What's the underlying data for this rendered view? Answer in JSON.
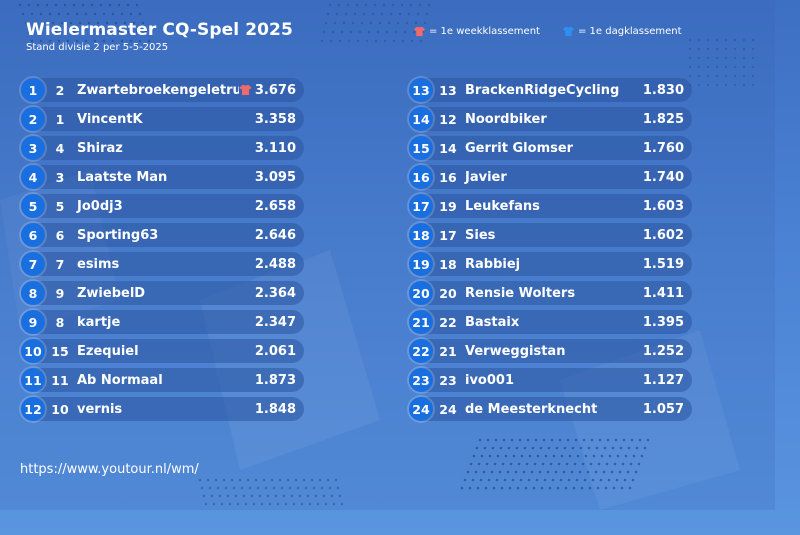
{
  "title": "Wielermaster CQ-Spel 2025",
  "subtitle": "Stand divisie 2 per 5-5-2025",
  "legend": [
    {
      "icon": "shirt-icon",
      "color": "#f06a6a",
      "label": "= 1e weekklassement"
    },
    {
      "icon": "shirt-icon",
      "color": "#2f8ff0",
      "label": "= 1e dagklassement"
    }
  ],
  "colors": {
    "rank_circle": "#1a6fe0",
    "week_shirt": "#f06a6a",
    "day_shirt": "#2f8ff0"
  },
  "standings_left": [
    {
      "rank": "1",
      "prev": "2",
      "name": "Zwartebroekengeletrui",
      "score": "3.676",
      "week_shirt": true
    },
    {
      "rank": "2",
      "prev": "1",
      "name": "VincentK",
      "score": "3.358"
    },
    {
      "rank": "3",
      "prev": "4",
      "name": "Shiraz",
      "score": "3.110"
    },
    {
      "rank": "4",
      "prev": "3",
      "name": "Laatste Man",
      "score": "3.095"
    },
    {
      "rank": "5",
      "prev": "5",
      "name": "Jo0dj3",
      "score": "2.658"
    },
    {
      "rank": "6",
      "prev": "6",
      "name": "Sporting63",
      "score": "2.646"
    },
    {
      "rank": "7",
      "prev": "7",
      "name": "esims",
      "score": "2.488"
    },
    {
      "rank": "8",
      "prev": "9",
      "name": "ZwiebelD",
      "score": "2.364"
    },
    {
      "rank": "9",
      "prev": "8",
      "name": "kartje",
      "score": "2.347"
    },
    {
      "rank": "10",
      "prev": "15",
      "name": "Ezequiel",
      "score": "2.061"
    },
    {
      "rank": "11",
      "prev": "11",
      "name": "Ab Normaal",
      "score": "1.873"
    },
    {
      "rank": "12",
      "prev": "10",
      "name": "vernis",
      "score": "1.848"
    }
  ],
  "standings_right": [
    {
      "rank": "13",
      "prev": "13",
      "name": "BrackenRidgeCycling",
      "score": "1.830"
    },
    {
      "rank": "14",
      "prev": "12",
      "name": "Noordbiker",
      "score": "1.825"
    },
    {
      "rank": "15",
      "prev": "14",
      "name": "Gerrit Glomser",
      "score": "1.760"
    },
    {
      "rank": "16",
      "prev": "16",
      "name": "Javier",
      "score": "1.740"
    },
    {
      "rank": "17",
      "prev": "19",
      "name": "Leukefans",
      "score": "1.603"
    },
    {
      "rank": "18",
      "prev": "17",
      "name": "Sies",
      "score": "1.602"
    },
    {
      "rank": "19",
      "prev": "18",
      "name": "Rabbiej",
      "score": "1.519"
    },
    {
      "rank": "20",
      "prev": "20",
      "name": "Rensie Wolters",
      "score": "1.411"
    },
    {
      "rank": "21",
      "prev": "22",
      "name": "Bastaix",
      "score": "1.395"
    },
    {
      "rank": "22",
      "prev": "21",
      "name": "Verweggistan",
      "score": "1.252"
    },
    {
      "rank": "23",
      "prev": "23",
      "name": "ivo001",
      "score": "1.127"
    },
    {
      "rank": "24",
      "prev": "24",
      "name": "de Meesterknecht",
      "score": "1.057"
    }
  ],
  "footer_url": "https://www.youtour.nl/wm/"
}
